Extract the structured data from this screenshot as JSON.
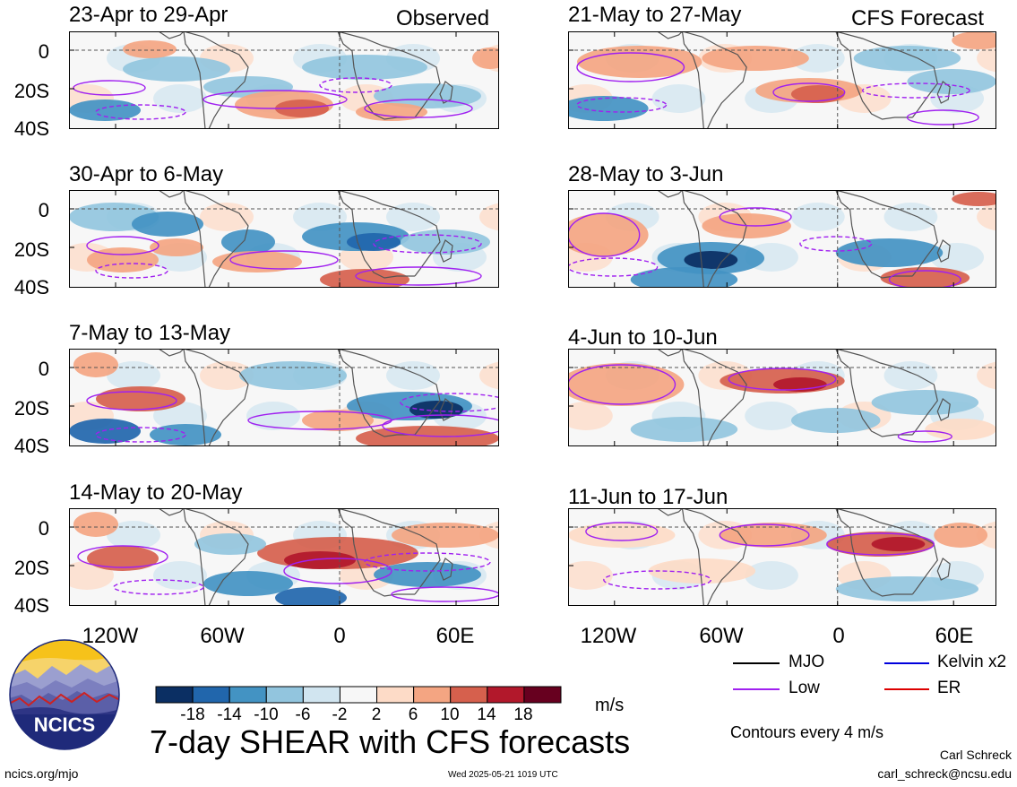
{
  "header": {
    "observed_label": "Observed",
    "forecast_label": "CFS Forecast"
  },
  "panels": {
    "observed": [
      {
        "title": "23-Apr to 29-Apr"
      },
      {
        "title": "30-Apr to 6-May"
      },
      {
        "title": "7-May to 13-May"
      },
      {
        "title": "14-May to 20-May"
      }
    ],
    "forecast": [
      {
        "title": "21-May to 27-May"
      },
      {
        "title": "28-May to 3-Jun"
      },
      {
        "title": "4-Jun to 10-Jun"
      },
      {
        "title": "11-Jun to 17-Jun"
      }
    ]
  },
  "axes": {
    "lat_ticks": [
      "0",
      "20S",
      "40S"
    ],
    "lon_ticks": [
      "120W",
      "60W",
      "0",
      "60E"
    ]
  },
  "colorbar": {
    "labels": [
      "-18",
      "-14",
      "-10",
      "-6",
      "-2",
      "2",
      "6",
      "10",
      "14",
      "18"
    ],
    "unit": "m/s",
    "colors": [
      "#0b2f63",
      "#2166ac",
      "#4393c3",
      "#92c5de",
      "#d1e5f0",
      "#f7f7f7",
      "#fddbc7",
      "#f4a582",
      "#d6604d",
      "#b2182b",
      "#67001f"
    ]
  },
  "legend": {
    "items": [
      {
        "label": "MJO",
        "color": "#000000"
      },
      {
        "label": "Kelvin x2",
        "color": "#0000dd"
      },
      {
        "label": "Low",
        "color": "#a020f0"
      },
      {
        "label": "ER",
        "color": "#dd0000"
      }
    ],
    "contour_note": "Contours every 4 m/s"
  },
  "main_title": "7-day SHEAR with CFS forecasts",
  "logo_text": "NCICS",
  "footer": {
    "website": "ncics.org/mjo",
    "timestamp": "Wed 2025-05-21 1019 UTC",
    "author": "Carl Schreck",
    "email": "carl_schreck@ncsu.edu"
  }
}
